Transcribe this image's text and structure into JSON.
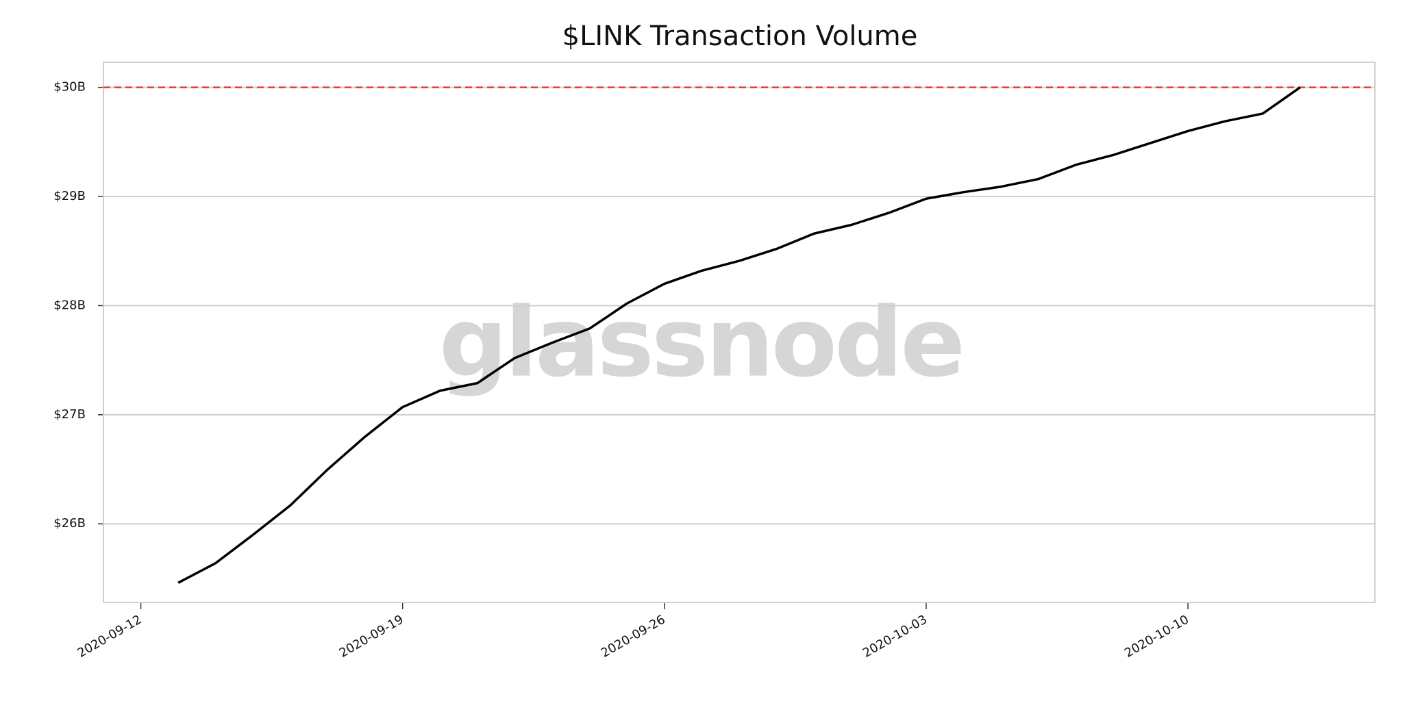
{
  "chart_data": {
    "type": "line",
    "title": "$LINK Transaction Volume",
    "watermark": "glassnode",
    "x": [
      "2020-09-13",
      "2020-09-14",
      "2020-09-15",
      "2020-09-16",
      "2020-09-17",
      "2020-09-18",
      "2020-09-19",
      "2020-09-20",
      "2020-09-21",
      "2020-09-22",
      "2020-09-23",
      "2020-09-24",
      "2020-09-25",
      "2020-09-26",
      "2020-09-27",
      "2020-09-28",
      "2020-09-29",
      "2020-09-30",
      "2020-10-01",
      "2020-10-02",
      "2020-10-03",
      "2020-10-04",
      "2020-10-05",
      "2020-10-06",
      "2020-10-07",
      "2020-10-08",
      "2020-10-09",
      "2020-10-10",
      "2020-10-11",
      "2020-10-12",
      "2020-10-13"
    ],
    "series": [
      {
        "color": "#000000",
        "values": [
          25.46,
          25.64,
          25.9,
          26.17,
          26.5,
          26.8,
          27.07,
          27.22,
          27.29,
          27.52,
          27.66,
          27.79,
          28.02,
          28.2,
          28.32,
          28.41,
          28.52,
          28.66,
          28.74,
          28.85,
          28.98,
          29.04,
          29.09,
          29.16,
          29.29,
          29.38,
          29.49,
          29.6,
          29.69,
          29.76,
          30.0
        ]
      }
    ],
    "reference_line": {
      "value": 30,
      "color": "#e03c3c"
    },
    "xlim": [
      "2020-09-11",
      "2020-10-15"
    ],
    "xticks": [
      "2020-09-12",
      "2020-09-19",
      "2020-09-26",
      "2020-10-03",
      "2020-10-10"
    ],
    "ylim": [
      25.28,
      30.23
    ],
    "yticks": [
      {
        "value": 26,
        "label": "$26B"
      },
      {
        "value": 27,
        "label": "$27B"
      },
      {
        "value": 28,
        "label": "$28B"
      },
      {
        "value": 29,
        "label": "$29B"
      },
      {
        "value": 30,
        "label": "$30B"
      }
    ],
    "grid": true
  }
}
